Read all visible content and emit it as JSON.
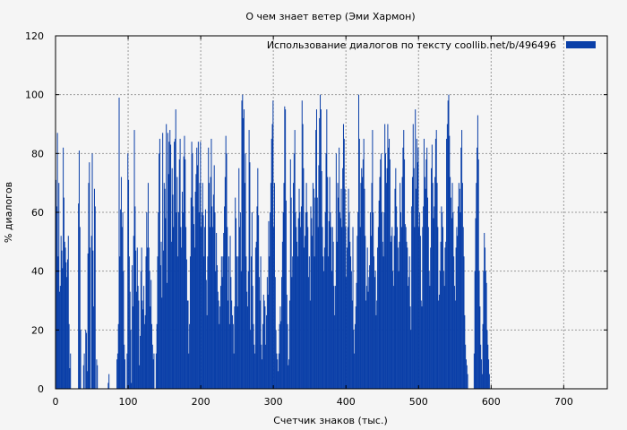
{
  "chart_data": {
    "type": "bar",
    "title": "О чем знает ветер (Эми Хармон)",
    "xlabel": "Счетчик знаков (тыс.)",
    "ylabel": "% диалогов",
    "xlim": [
      0,
      760
    ],
    "ylim": [
      0,
      120
    ],
    "xticks": [
      0,
      100,
      200,
      300,
      400,
      500,
      600,
      700
    ],
    "yticks": [
      0,
      20,
      40,
      60,
      80,
      100,
      120
    ],
    "grid": true,
    "legend_position": "top-right",
    "bar_color": "#0a3fa8",
    "series": [
      {
        "name": "Использование диалогов по тексту  coollib.net/b/496496",
        "x_start": 0,
        "x_step": 1,
        "values": [
          71,
          62,
          87,
          45,
          70,
          33,
          35,
          52,
          47,
          41,
          82,
          65,
          50,
          48,
          43,
          38,
          44,
          52,
          22,
          7,
          12,
          0,
          0,
          0,
          0,
          0,
          0,
          0,
          0,
          0,
          0,
          63,
          81,
          55,
          20,
          0,
          0,
          0,
          8,
          12,
          0,
          20,
          19,
          6,
          46,
          70,
          77,
          48,
          0,
          52,
          80,
          47,
          28,
          68,
          62,
          0,
          10,
          8,
          0,
          0,
          0,
          0,
          0,
          0,
          0,
          0,
          0,
          0,
          0,
          0,
          0,
          0,
          2,
          5,
          0,
          0,
          0,
          0,
          0,
          0,
          0,
          0,
          0,
          0,
          10,
          12,
          22,
          99,
          45,
          61,
          72,
          55,
          60,
          40,
          15,
          10,
          0,
          0,
          12,
          80,
          71,
          45,
          33,
          20,
          2,
          42,
          28,
          52,
          88,
          62,
          47,
          33,
          48,
          35,
          30,
          8,
          18,
          40,
          48,
          30,
          27,
          35,
          22,
          25,
          45,
          60,
          48,
          70,
          48,
          40,
          28,
          37,
          22,
          15,
          10,
          12,
          0,
          0,
          12,
          22,
          45,
          60,
          80,
          85,
          42,
          50,
          31,
          87,
          47,
          70,
          68,
          58,
          90,
          36,
          87,
          73,
          84,
          88,
          83,
          50,
          75,
          66,
          55,
          84,
          85,
          95,
          60,
          72,
          45,
          60,
          78,
          85,
          55,
          48,
          67,
          60,
          79,
          86,
          78,
          55,
          44,
          30,
          30,
          12,
          22,
          45,
          65,
          84,
          80,
          62,
          56,
          48,
          67,
          73,
          82,
          76,
          84,
          60,
          70,
          84,
          55,
          60,
          70,
          59,
          45,
          55,
          61,
          37,
          25,
          45,
          82,
          70,
          55,
          72,
          85,
          62,
          55,
          66,
          76,
          60,
          40,
          53,
          42,
          33,
          30,
          22,
          28,
          35,
          45,
          38,
          45,
          53,
          62,
          72,
          86,
          80,
          55,
          30,
          45,
          22,
          52,
          38,
          30,
          25,
          22,
          12,
          28,
          65,
          58,
          45,
          28,
          45,
          75,
          55,
          60,
          40,
          98,
          100,
          92,
          95,
          70,
          80,
          45,
          33,
          28,
          40,
          88,
          77,
          20,
          45,
          60,
          35,
          22,
          15,
          12,
          48,
          50,
          62,
          75,
          59,
          38,
          30,
          45,
          15,
          10,
          22,
          32,
          30,
          28,
          15,
          25,
          38,
          32,
          57,
          45,
          60,
          70,
          85,
          90,
          98,
          55,
          70,
          38,
          20,
          12,
          10,
          6,
          12,
          22,
          28,
          23,
          38,
          50,
          60,
          70,
          96,
          95,
          64,
          32,
          22,
          8,
          10,
          30,
          78,
          65,
          38,
          45,
          70,
          80,
          88,
          60,
          55,
          50,
          45,
          58,
          68,
          60,
          55,
          62,
          98,
          90,
          75,
          48,
          52,
          60,
          70,
          60,
          55,
          38,
          45,
          30,
          62,
          58,
          52,
          70,
          68,
          45,
          65,
          88,
          95,
          65,
          55,
          76,
          92,
          100,
          95,
          74,
          55,
          45,
          40,
          48,
          60,
          80,
          95,
          72,
          45,
          57,
          72,
          60,
          55,
          40,
          55,
          50,
          35,
          25,
          35,
          80,
          50,
          70,
          65,
          82,
          60,
          58,
          68,
          55,
          75,
          90,
          85,
          68,
          55,
          38,
          48,
          55,
          68,
          60,
          50,
          45,
          40,
          30,
          55,
          20,
          12,
          22,
          28,
          36,
          52,
          60,
          100,
          85,
          55,
          70,
          75,
          72,
          78,
          85,
          68,
          52,
          30,
          35,
          48,
          33,
          38,
          42,
          60,
          52,
          70,
          88,
          60,
          45,
          38,
          40,
          25,
          30,
          48,
          55,
          64,
          72,
          78,
          80,
          60,
          50,
          45,
          60,
          90,
          80,
          70,
          75,
          90,
          82,
          85,
          78,
          50,
          52,
          55,
          40,
          35,
          52,
          68,
          75,
          62,
          55,
          48,
          40,
          50,
          70,
          60,
          55,
          72,
          82,
          88,
          78,
          56,
          55,
          50,
          48,
          35,
          38,
          45,
          28,
          20,
          62,
          72,
          90,
          75,
          55,
          95,
          68,
          85,
          77,
          82,
          55,
          60,
          52,
          30,
          28,
          55,
          62,
          85,
          72,
          68,
          78,
          82,
          65,
          55,
          40,
          35,
          48,
          75,
          83,
          70,
          58,
          62,
          72,
          85,
          88,
          70,
          55,
          30,
          32,
          40,
          50,
          62,
          60,
          55,
          40,
          35,
          48,
          50,
          85,
          90,
          98,
          100,
          86,
          72,
          65,
          58,
          70,
          60,
          45,
          35,
          30,
          48,
          55,
          52,
          62,
          70,
          68,
          60,
          82,
          88,
          70,
          55,
          45,
          25,
          15,
          10,
          8,
          5,
          0,
          0,
          0,
          0,
          0,
          0,
          0,
          0,
          12,
          40,
          58,
          70,
          82,
          93,
          78,
          40,
          28,
          15,
          10,
          5,
          22,
          40,
          53,
          48,
          40,
          36,
          20,
          15,
          10,
          5,
          0,
          0,
          0,
          0
        ]
      }
    ]
  }
}
